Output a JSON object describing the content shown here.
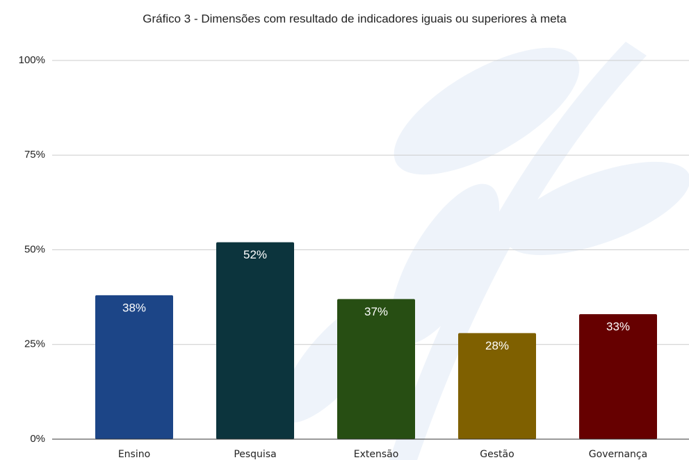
{
  "chart_data": {
    "type": "bar",
    "title": "Gráfico 3 - Dimensões com resultado de indicadores iguais ou superiores à meta",
    "categories": [
      "Ensino",
      "Pesquisa",
      "Extensão",
      "Gestão",
      "Governança"
    ],
    "values": [
      38,
      52,
      37,
      28,
      33
    ],
    "value_labels": [
      "38%",
      "52%",
      "37%",
      "28%",
      "33%"
    ],
    "colors": [
      "#1c4587",
      "#0c343d",
      "#274e13",
      "#7f6000",
      "#660000"
    ],
    "ylim": [
      0,
      100
    ],
    "yticks": [
      {
        "value": 0,
        "label": "0%"
      },
      {
        "value": 25,
        "label": "25%"
      },
      {
        "value": 50,
        "label": "50%"
      },
      {
        "value": 75,
        "label": "75%"
      },
      {
        "value": 100,
        "label": "100%"
      }
    ],
    "grid": true
  }
}
